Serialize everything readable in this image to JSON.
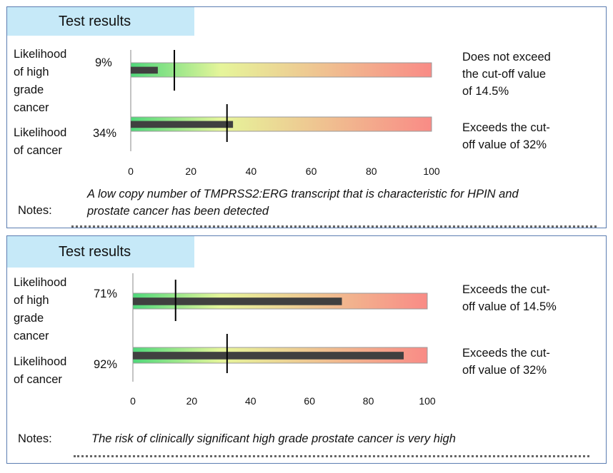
{
  "chart_data": [
    {
      "type": "bar",
      "title": "Test results",
      "xlim": [
        0,
        100
      ],
      "xticks": [
        0,
        20,
        40,
        60,
        80,
        100
      ],
      "rows": [
        {
          "label": [
            "Likelihood",
            "of high",
            "grade",
            "cancer"
          ],
          "value": 9,
          "value_label": "9%",
          "cutoff": 14.5,
          "note": [
            "Does not exceed",
            "the cut-off value",
            "of 14.5%"
          ]
        },
        {
          "label": [
            "Likelihood",
            "of cancer"
          ],
          "value": 34,
          "value_label": "34%",
          "cutoff": 32,
          "note": [
            "Exceeds the cut-",
            "off value of 32%"
          ]
        }
      ],
      "notes_label": "Notes:",
      "notes_text": [
        "A low copy number of TMPRSS2:ERG transcript that is characteristic for HPIN and",
        "prostate cancer has been detected"
      ]
    },
    {
      "type": "bar",
      "title": "Test results",
      "xlim": [
        0,
        100
      ],
      "xticks": [
        0,
        20,
        40,
        60,
        80,
        100
      ],
      "rows": [
        {
          "label": [
            "Likelihood",
            "of high",
            "grade",
            "cancer"
          ],
          "value": 71,
          "value_label": "71%",
          "cutoff": 14.5,
          "note": [
            "Exceeds the cut-",
            "off value of 14.5%"
          ]
        },
        {
          "label": [
            "Likelihood",
            "of cancer"
          ],
          "value": 92,
          "value_label": "92%",
          "cutoff": 32,
          "note": [
            "Exceeds the cut-",
            "off value of 32%"
          ]
        }
      ],
      "notes_label": "Notes:",
      "notes_text": [
        "The risk of clinically significant high grade prostate cancer is very high"
      ]
    }
  ],
  "colors": {
    "border": "#5b7db1",
    "header_bg": "#c6e9f8",
    "gradient_start": "#4fd87a",
    "gradient_mid": "#e6f59a",
    "gradient_end": "#f98b86",
    "value_bar": "#404040",
    "cutoff": "#000000"
  }
}
